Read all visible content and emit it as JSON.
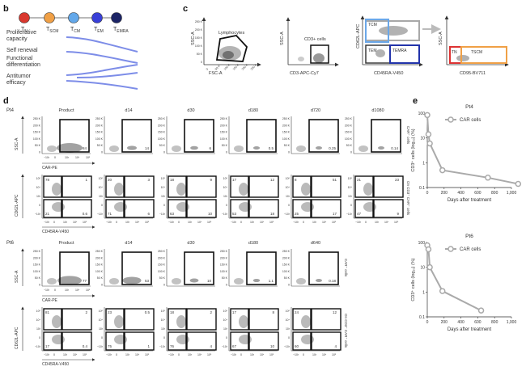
{
  "panels": {
    "b": "b",
    "c": "c",
    "d": "d",
    "e": "e"
  },
  "panel_b": {
    "cell_types": [
      {
        "main": "T",
        "sub": "N",
        "color": "#d9382f"
      },
      {
        "main": "T",
        "sub": "SCM",
        "color": "#f0a046"
      },
      {
        "main": "T",
        "sub": "CM",
        "color": "#63a8ea"
      },
      {
        "main": "T",
        "sub": "EM",
        "color": "#3940d8"
      },
      {
        "main": "T",
        "sub": "EMRA",
        "color": "#1c2466"
      }
    ],
    "properties": [
      "Proliferative capacity",
      "Self renewal",
      "Functional differentiation",
      "Antitumor efficacy"
    ]
  },
  "panel_c": {
    "plot1": {
      "ylabel": "SSC-A",
      "xlabel": "FSC-A",
      "gate": "Lymphocytes",
      "xticks": [
        "0",
        "50 K",
        "100 K",
        "150 K",
        "200 K",
        "250 K"
      ],
      "yticks": [
        "250 K",
        "200 K",
        "150 K",
        "100 K",
        "50 K",
        "0"
      ]
    },
    "plot2": {
      "ylabel": "SSC-A",
      "xlabel": "CD3-APC-Cy7",
      "gate": "CD3+ cells"
    },
    "plot3": {
      "ylabel": "CD62L-APC",
      "xlabel": "CD45RA-V450",
      "gates": [
        "TCM",
        "TEM",
        "TEMRA"
      ]
    },
    "plot4": {
      "ylabel": "SSC-A",
      "xlabel": "CD95-BV711",
      "gates": [
        "TN",
        "TSCM"
      ]
    }
  },
  "panel_d": {
    "pt4": {
      "patient": "Pt4",
      "timepoints": [
        "Product",
        "d14",
        "d30",
        "d180",
        "d720",
        "d1080"
      ],
      "car_pct": [
        "84",
        "14",
        "6",
        "0.5",
        "0.25",
        "0.14"
      ],
      "scatter_ylabel": "SSC-A",
      "scatter_xlabel": "CAR-PE",
      "scatter_yticks": [
        "250 K",
        "200 K",
        "150 K",
        "100 K",
        "50 K",
        "0"
      ],
      "scatter_xticks": [
        "−10³",
        "0",
        "10³",
        "10⁴",
        "10⁵"
      ],
      "side1": "CAR⁺ cells",
      "quad": [
        [
          "78",
          "1",
          "21",
          "0.6"
        ],
        [
          "20",
          "3",
          "71",
          "6"
        ],
        [
          "18",
          "9",
          "63",
          "10"
        ],
        [
          "17",
          "12",
          "53",
          "18"
        ],
        [
          "8",
          "51",
          "25",
          "17"
        ],
        [
          "21",
          "23",
          "47",
          "9"
        ]
      ],
      "quad_ylabel": "CD62L-APC",
      "quad_xlabel": "CD45RA-V450",
      "quad_yticks": [
        "10⁵",
        "10⁴",
        "10³",
        "0",
        "−10³"
      ],
      "quad_xticks": [
        "−10³",
        "0",
        "10³",
        "10⁴",
        "10⁵"
      ],
      "side2": "On CD3⁺ CAR⁺ cells"
    },
    "pt6": {
      "patient": "Pt6",
      "timepoints": [
        "Product",
        "d14",
        "d30",
        "d180",
        "d640"
      ],
      "car_pct": [
        "77",
        "53",
        "10",
        "1.1",
        "0.18"
      ],
      "side1": "CAR⁺ cells",
      "quad": [
        [
          "81",
          "2",
          "17",
          "0.4"
        ],
        [
          "23",
          "0.5",
          "75",
          "1"
        ],
        [
          "18",
          "2",
          "76",
          "4"
        ],
        [
          "17",
          "8",
          "67",
          "10"
        ],
        [
          "24",
          "12",
          "60",
          "4"
        ]
      ],
      "side2": "On CD3⁺ CAR⁺ cells"
    }
  },
  "panel_e": {
    "charts": [
      {
        "title": "Pt4",
        "legend": "CAR cells",
        "xlabel": "Days after treatment",
        "ylabel": "CD3⁺ cells (log₁₀) (%)"
      },
      {
        "title": "Pt6",
        "legend": "CAR cells",
        "xlabel": "Days after treatment",
        "ylabel": "CD3⁺ cells (log₁₀) (%)"
      }
    ]
  },
  "chart_data": [
    {
      "type": "line",
      "title": "Pt4",
      "xlabel": "Days after treatment",
      "ylabel": "CD3⁺ cells (log₁₀) (%)",
      "yscale": "log",
      "xlim": [
        0,
        1000
      ],
      "ylim": [
        0.1,
        100
      ],
      "xticks": [
        "0",
        "200",
        "400",
        "600",
        "800",
        "1,000"
      ],
      "yticks": [
        "100",
        "10",
        "1",
        "0.1"
      ],
      "legend": "top-right",
      "series": [
        {
          "name": "CAR cells",
          "color": "#aaaaaa",
          "x": [
            0,
            14,
            30,
            180,
            720,
            1080
          ],
          "y": [
            84,
            14,
            6,
            0.5,
            0.25,
            0.14
          ]
        }
      ]
    },
    {
      "type": "line",
      "title": "Pt6",
      "xlabel": "Days after treatment",
      "ylabel": "CD3⁺ cells (log₁₀) (%)",
      "yscale": "log",
      "xlim": [
        0,
        1000
      ],
      "ylim": [
        0.1,
        100
      ],
      "xticks": [
        "0",
        "200",
        "400",
        "600",
        "800",
        "1,000"
      ],
      "yticks": [
        "100",
        "10",
        "1",
        "0.1"
      ],
      "legend": "top-right",
      "series": [
        {
          "name": "CAR cells",
          "color": "#aaaaaa",
          "x": [
            0,
            14,
            30,
            180,
            640
          ],
          "y": [
            77,
            53,
            10,
            1.1,
            0.18
          ]
        }
      ]
    }
  ]
}
